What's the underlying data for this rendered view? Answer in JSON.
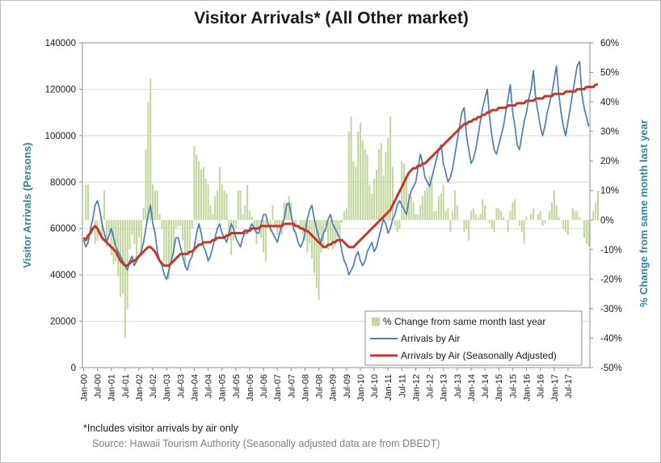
{
  "chart_data": {
    "type": "line",
    "title": "Visitor Arrivals* (All Other market)",
    "footnote": "*Includes visitor arrivals by air only",
    "source": "Source: Hawaii Tourism Authority  (Seasonally adjusted data are from DBEDT)",
    "ylabel": "Visitor Arrivals (Persons)",
    "y2label": "% Change from same month last year",
    "ylim": [
      0,
      140000
    ],
    "y_ticks": [
      "0",
      "20000",
      "40000",
      "60000",
      "80000",
      "100000",
      "120000",
      "140000"
    ],
    "y2lim": [
      -50,
      60
    ],
    "y2_ticks": [
      "-50%",
      "-40%",
      "-30%",
      "-20%",
      "-10%",
      "0%",
      "10%",
      "20%",
      "30%",
      "40%",
      "50%",
      "60%"
    ],
    "x_tick_labels": [
      "Jan-00",
      "Jul-00",
      "Jan-01",
      "Jul-01",
      "Jan-02",
      "Jul-02",
      "Jan-03",
      "Jul-03",
      "Jan-04",
      "Jul-04",
      "Jan-05",
      "Jul-05",
      "Jan-06",
      "Jul-06",
      "Jan-07",
      "Jul-07",
      "Jan-08",
      "Jul-08",
      "Jan-09",
      "Jul-09",
      "Jan-10",
      "Jul-10",
      "Jan-11",
      "Jul-11",
      "Jan-12",
      "Jul-12",
      "Jan-13",
      "Jul-13",
      "Jan-14",
      "Jul-14",
      "Jan-15",
      "Jul-15",
      "Jan-16",
      "Jul-16",
      "Jan-17",
      "Jul-17"
    ],
    "period": {
      "start": "Jan-00",
      "end": "Oct-17",
      "frequency": "monthly"
    },
    "legend_position": "bottom-right",
    "grid": {
      "horizontal": true,
      "vertical": false
    },
    "colors": {
      "pct_bars": "#c3d69b",
      "air": "#4a7ebb",
      "sa": "#c0392b",
      "axis_title": "#31849b",
      "grid": "#d9d9d9"
    },
    "series": [
      {
        "name": "% Change from same month last year",
        "kind": "bar",
        "axis": "right",
        "values": [
          0,
          12,
          12,
          0,
          0,
          -8,
          -7,
          0,
          -7,
          10,
          -9,
          -4,
          -12,
          -15,
          -14,
          -19,
          -26,
          -25,
          -40,
          -30,
          -10,
          -5,
          -8,
          -14,
          -6,
          -11,
          4,
          24,
          40,
          48,
          12,
          10,
          10,
          2,
          -3,
          -14,
          -16,
          -20,
          -15,
          -12,
          -3,
          -2,
          -2,
          -7,
          -16,
          -11,
          -10,
          -3,
          25,
          22,
          20,
          17,
          18,
          14,
          12,
          5,
          2,
          8,
          10,
          18,
          12,
          10,
          9,
          -5,
          -12,
          -7,
          -3,
          10,
          10,
          2,
          5,
          12,
          3,
          1,
          -3,
          -8,
          -3,
          -6,
          -11,
          -14,
          0,
          -4,
          5,
          -2,
          -5,
          -3,
          -5,
          6,
          6,
          8,
          6,
          -4,
          -2,
          0,
          -3,
          -5,
          -7,
          -11,
          -8,
          -13,
          -18,
          -23,
          -27,
          -11,
          -9,
          -2,
          -10,
          -7,
          -10,
          -9,
          -6,
          -8,
          -1,
          3,
          4,
          30,
          35,
          20,
          18,
          30,
          33,
          27,
          24,
          22,
          12,
          9,
          14,
          17,
          24,
          26,
          15,
          23,
          28,
          35,
          18,
          -2,
          -4,
          -3,
          20,
          19,
          14,
          9,
          8,
          6,
          2,
          2,
          5,
          8,
          10,
          11,
          15,
          13,
          3,
          3,
          8,
          9,
          12,
          3,
          4,
          -4,
          3,
          10,
          5,
          0,
          0,
          -4,
          -3,
          -7,
          3,
          4,
          2,
          1,
          2,
          7,
          5,
          0,
          -1,
          -3,
          -4,
          4,
          4,
          3,
          1,
          0,
          -4,
          3,
          6,
          7,
          0,
          -2,
          -4,
          -8,
          1,
          0,
          2,
          4,
          0,
          2,
          3,
          -2,
          -1,
          0,
          3,
          6,
          10,
          5,
          1,
          0,
          -3,
          -4,
          -5,
          0,
          4,
          3,
          3,
          1,
          0,
          -6,
          -8,
          -9,
          0,
          3,
          6,
          10
        ]
      },
      {
        "name": "Arrivals by Air",
        "kind": "line",
        "axis": "left",
        "values": [
          55000,
          52000,
          54000,
          60000,
          64000,
          70000,
          72000,
          68000,
          62000,
          58000,
          54000,
          57000,
          60000,
          56000,
          52000,
          50000,
          48000,
          46000,
          44000,
          42000,
          46000,
          48000,
          44000,
          46000,
          48000,
          50000,
          54000,
          60000,
          66000,
          70000,
          62000,
          58000,
          50000,
          46000,
          44000,
          40000,
          38000,
          42000,
          46000,
          50000,
          56000,
          56000,
          52000,
          48000,
          44000,
          42000,
          46000,
          48000,
          52000,
          58000,
          62000,
          58000,
          52000,
          50000,
          46000,
          48000,
          52000,
          56000,
          60000,
          62000,
          58000,
          56000,
          54000,
          58000,
          62000,
          60000,
          56000,
          54000,
          52000,
          56000,
          58000,
          58000,
          60000,
          62000,
          60000,
          58000,
          58000,
          62000,
          66000,
          66000,
          62000,
          60000,
          58000,
          56000,
          54000,
          58000,
          62000,
          64000,
          70000,
          71000,
          66000,
          60000,
          58000,
          54000,
          52000,
          54000,
          58000,
          64000,
          68000,
          70000,
          64000,
          60000,
          56000,
          54000,
          58000,
          60000,
          64000,
          66000,
          62000,
          60000,
          58000,
          56000,
          50000,
          46000,
          44000,
          40000,
          42000,
          44000,
          48000,
          50000,
          46000,
          44000,
          46000,
          50000,
          52000,
          54000,
          50000,
          52000,
          56000,
          60000,
          64000,
          62000,
          58000,
          60000,
          64000,
          66000,
          70000,
          72000,
          70000,
          68000,
          66000,
          72000,
          76000,
          78000,
          80000,
          86000,
          92000,
          88000,
          82000,
          80000,
          78000,
          82000,
          86000,
          90000,
          94000,
          96000,
          88000,
          84000,
          80000,
          82000,
          86000,
          92000,
          98000,
          104000,
          110000,
          112000,
          100000,
          94000,
          88000,
          90000,
          94000,
          100000,
          106000,
          112000,
          116000,
          120000,
          108000,
          100000,
          94000,
          92000,
          96000,
          100000,
          104000,
          110000,
          116000,
          122000,
          110000,
          104000,
          96000,
          94000,
          100000,
          106000,
          110000,
          116000,
          120000,
          128000,
          116000,
          110000,
          104000,
          100000,
          104000,
          110000,
          114000,
          118000,
          124000,
          130000,
          118000,
          110000,
          104000,
          100000,
          106000,
          112000,
          118000,
          124000,
          130000,
          132000,
          118000,
          112000,
          108000,
          104000
        ]
      },
      {
        "name": "Arrivals by Air (Seasonally Adjusted)",
        "kind": "line",
        "axis": "left",
        "values": [
          56000,
          55000,
          57000,
          58000,
          60000,
          61000,
          60000,
          58000,
          56000,
          55000,
          54000,
          53000,
          52000,
          51000,
          50000,
          48000,
          46000,
          45000,
          44000,
          44000,
          45000,
          46000,
          46000,
          47000,
          48000,
          49000,
          50000,
          51000,
          52000,
          52000,
          51000,
          50000,
          48000,
          46000,
          45000,
          44000,
          44000,
          44000,
          45000,
          46000,
          47000,
          48000,
          49000,
          49000,
          49000,
          49000,
          50000,
          50000,
          51000,
          52000,
          53000,
          53000,
          54000,
          54000,
          54000,
          54000,
          55000,
          55000,
          56000,
          56000,
          56000,
          56000,
          57000,
          57000,
          58000,
          58000,
          58000,
          58000,
          58000,
          58000,
          59000,
          59000,
          59000,
          60000,
          60000,
          60000,
          60000,
          61000,
          61000,
          61000,
          61000,
          61000,
          61000,
          61000,
          61000,
          61000,
          61000,
          62000,
          62000,
          62000,
          62000,
          62000,
          61000,
          61000,
          60000,
          60000,
          59000,
          59000,
          58000,
          57000,
          56000,
          55000,
          54000,
          53000,
          52000,
          52000,
          53000,
          53000,
          54000,
          54000,
          55000,
          55000,
          55000,
          54000,
          53000,
          52000,
          52000,
          52000,
          53000,
          54000,
          55000,
          56000,
          57000,
          58000,
          59000,
          60000,
          61000,
          62000,
          63000,
          64000,
          65000,
          66000,
          67000,
          68000,
          70000,
          72000,
          74000,
          76000,
          78000,
          80000,
          82000,
          84000,
          85000,
          86000,
          86000,
          87000,
          87000,
          88000,
          88000,
          89000,
          90000,
          91000,
          92000,
          93000,
          94000,
          95000,
          96000,
          97000,
          98000,
          99000,
          100000,
          101000,
          102000,
          103000,
          104000,
          105000,
          105000,
          106000,
          106000,
          107000,
          107000,
          108000,
          108000,
          109000,
          109000,
          110000,
          110000,
          111000,
          111000,
          111000,
          112000,
          112000,
          112000,
          112000,
          113000,
          113000,
          113000,
          113000,
          114000,
          114000,
          114000,
          114000,
          115000,
          115000,
          115000,
          115000,
          116000,
          116000,
          116000,
          116000,
          117000,
          117000,
          117000,
          117000,
          118000,
          118000,
          118000,
          118000,
          118000,
          119000,
          119000,
          119000,
          119000,
          119000,
          120000,
          120000,
          120000,
          120000,
          121000,
          121000,
          121000,
          121000,
          122000,
          122000
        ]
      }
    ]
  }
}
